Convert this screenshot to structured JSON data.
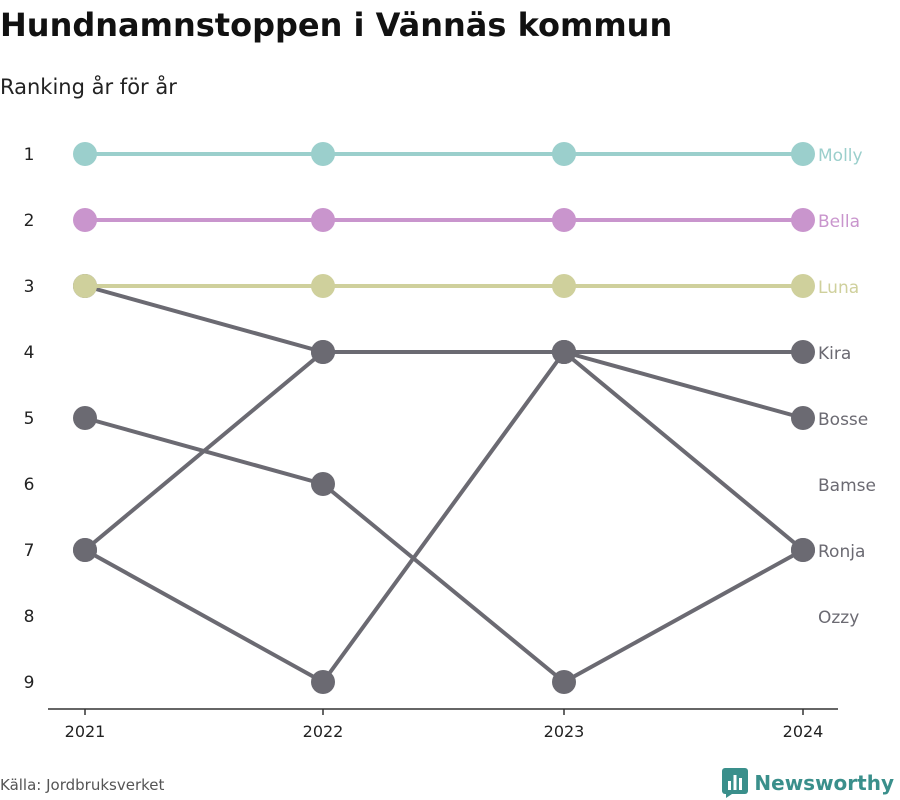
{
  "header": {
    "title": "Hundnamnstoppen i Vännäs kommun",
    "subtitle": "Ranking år för år"
  },
  "footer": {
    "source": "Källa: Jordbruksverket",
    "brand": "Newsworthy",
    "brand_icon": "bar-chart-logo-icon"
  },
  "colors": {
    "Molly": "#9bcfcc",
    "Bella": "#c995cd",
    "Luna": "#cfd09c",
    "default": "#6b6a72",
    "axis": "#333333",
    "brand": "#3a8f8b"
  },
  "chart_data": {
    "type": "line",
    "x": [
      "2021",
      "2022",
      "2023",
      "2024"
    ],
    "y_ticks": [
      1,
      2,
      3,
      4,
      5,
      6,
      7,
      8,
      9
    ],
    "y_inverted": true,
    "ylim": [
      1,
      9
    ],
    "grid": false,
    "legend": "direct labels at right end",
    "series": [
      {
        "name": "Molly",
        "values": [
          1,
          1,
          1,
          1
        ]
      },
      {
        "name": "Bella",
        "values": [
          2,
          2,
          2,
          2
        ]
      },
      {
        "name": "Luna",
        "values": [
          3,
          3,
          3,
          3
        ]
      },
      {
        "name": "Kira",
        "values": [
          7,
          4,
          4,
          4
        ]
      },
      {
        "name": "Bosse",
        "values": [
          3,
          4,
          4,
          5
        ]
      },
      {
        "name": "Bamse",
        "values": [
          5,
          6,
          9,
          7
        ]
      },
      {
        "name": "Ronja",
        "values": [
          7,
          9,
          4,
          7
        ]
      },
      {
        "name": "Ozzy",
        "values": [
          null,
          null,
          null,
          null
        ]
      }
    ],
    "end_labels": [
      "Molly",
      "Bella",
      "Luna",
      "Kira",
      "Bosse",
      "Bamse",
      "Ronja",
      "Ozzy"
    ]
  }
}
